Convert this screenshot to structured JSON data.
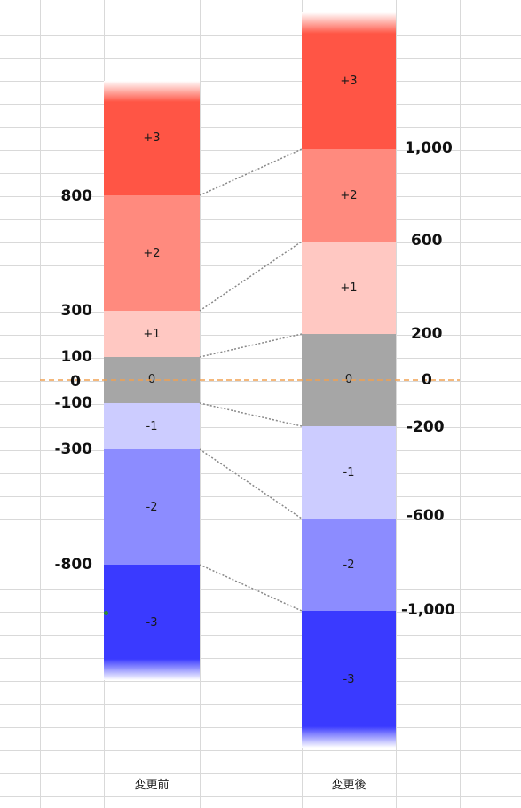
{
  "columns": {
    "before": {
      "label": "変更前",
      "segments": [
        {
          "label": "+3",
          "color": "#ff5545"
        },
        {
          "label": "+2",
          "color": "#ff8a7e"
        },
        {
          "label": "+1",
          "color": "#ffc8c2"
        },
        {
          "label": "0",
          "color": "#a6a6a6"
        },
        {
          "label": "-1",
          "color": "#ccccff"
        },
        {
          "label": "-2",
          "color": "#8c8cff"
        },
        {
          "label": "-3",
          "color": "#3a3aff"
        }
      ],
      "ticks": [
        "800",
        "300",
        "100",
        "0",
        "-100",
        "-300",
        "-800"
      ]
    },
    "after": {
      "label": "変更後",
      "segments": [
        {
          "label": "+3",
          "color": "#ff5545"
        },
        {
          "label": "+2",
          "color": "#ff8a7e"
        },
        {
          "label": "+1",
          "color": "#ffc8c2"
        },
        {
          "label": "0",
          "color": "#a6a6a6"
        },
        {
          "label": "-1",
          "color": "#ccccff"
        },
        {
          "label": "-2",
          "color": "#8c8cff"
        },
        {
          "label": "-3",
          "color": "#3a3aff"
        }
      ],
      "ticks": [
        "1,000",
        "600",
        "200",
        "0",
        "-200",
        "-600",
        "-1,000"
      ]
    }
  },
  "colors": {
    "zero_line": "#f0a050",
    "connector": "#888888",
    "grid": "#d9d9d9"
  }
}
